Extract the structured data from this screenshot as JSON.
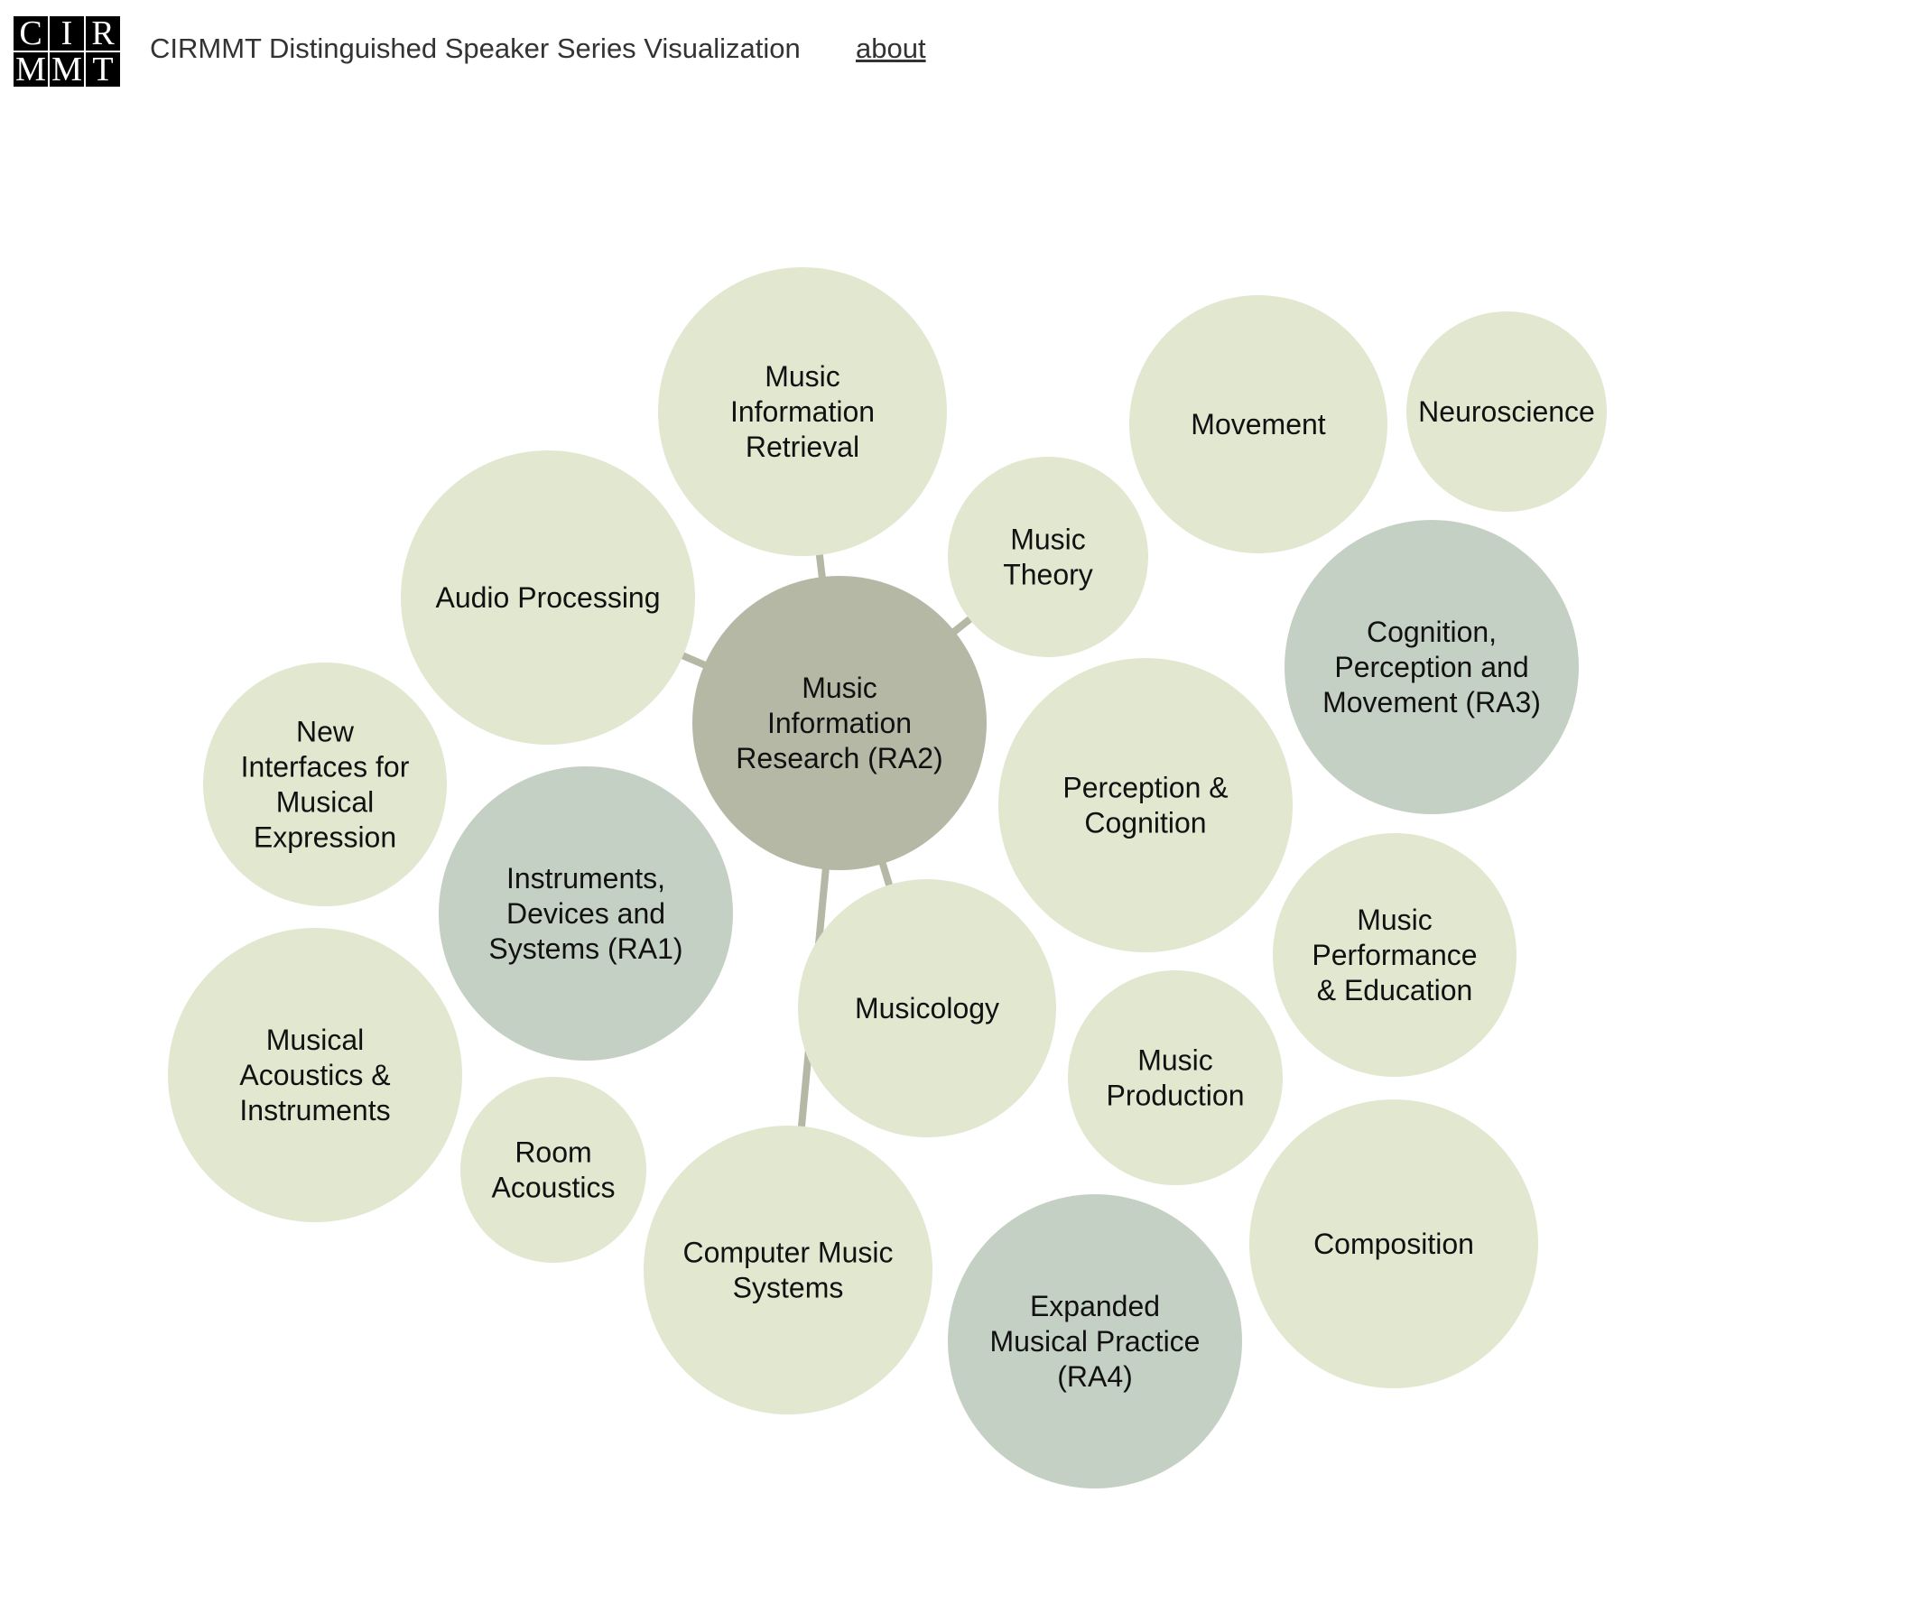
{
  "header": {
    "logo_letters": [
      "C",
      "I",
      "R",
      "M",
      "M",
      "T"
    ],
    "title": "CIRMMT Distinguished Speaker Series Visualization",
    "about_label": "about"
  },
  "colors": {
    "topic": "#e2e7d0",
    "research_axis": "#c5d0c4",
    "focus": "#b4b8a5",
    "link": "#b4b8a5"
  },
  "visualization": {
    "focus": "ra2",
    "links": [
      [
        "ra2",
        "mir"
      ],
      [
        "ra2",
        "theory"
      ],
      [
        "ra2",
        "audio"
      ],
      [
        "ra2",
        "musicology"
      ],
      [
        "ra2",
        "cms"
      ]
    ],
    "nodes": [
      {
        "id": "mir",
        "kind": "topic",
        "lines": [
          "Music",
          "Information",
          "Retrieval"
        ]
      },
      {
        "id": "movement",
        "kind": "topic",
        "lines": [
          "Movement"
        ]
      },
      {
        "id": "neuro",
        "kind": "topic",
        "lines": [
          "Neuroscience"
        ]
      },
      {
        "id": "theory",
        "kind": "topic",
        "lines": [
          "Music",
          "Theory"
        ]
      },
      {
        "id": "audio",
        "kind": "topic",
        "lines": [
          "Audio Processing"
        ]
      },
      {
        "id": "ra3",
        "kind": "research_axis",
        "lines": [
          "Cognition,",
          "Perception and",
          "Movement (RA3)"
        ]
      },
      {
        "id": "ra2",
        "kind": "focus",
        "lines": [
          "Music",
          "Information",
          "Research (RA2)"
        ]
      },
      {
        "id": "nime",
        "kind": "topic",
        "lines": [
          "New",
          "Interfaces for",
          "Musical",
          "Expression"
        ]
      },
      {
        "id": "percog",
        "kind": "topic",
        "lines": [
          "Perception &",
          "Cognition"
        ]
      },
      {
        "id": "ra1",
        "kind": "research_axis",
        "lines": [
          "Instruments,",
          "Devices and",
          "Systems (RA1)"
        ]
      },
      {
        "id": "mpe",
        "kind": "topic",
        "lines": [
          "Music",
          "Performance",
          "& Education"
        ]
      },
      {
        "id": "musicology",
        "kind": "topic",
        "lines": [
          "Musicology"
        ]
      },
      {
        "id": "acoustics",
        "kind": "topic",
        "lines": [
          "Musical",
          "Acoustics &",
          "Instruments"
        ]
      },
      {
        "id": "production",
        "kind": "topic",
        "lines": [
          "Music",
          "Production"
        ]
      },
      {
        "id": "room",
        "kind": "topic",
        "lines": [
          "Room",
          "Acoustics"
        ]
      },
      {
        "id": "cms",
        "kind": "topic",
        "lines": [
          "Computer Music",
          "Systems"
        ]
      },
      {
        "id": "composition",
        "kind": "topic",
        "lines": [
          "Composition"
        ]
      },
      {
        "id": "ra4",
        "kind": "research_axis",
        "lines": [
          "Expanded",
          "Musical Practice",
          "(RA4)"
        ]
      }
    ]
  }
}
